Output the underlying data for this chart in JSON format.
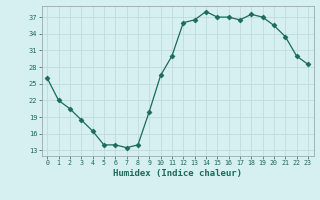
{
  "x": [
    0,
    1,
    2,
    3,
    4,
    5,
    6,
    7,
    8,
    9,
    10,
    11,
    12,
    13,
    14,
    15,
    16,
    17,
    18,
    19,
    20,
    21,
    22,
    23
  ],
  "y": [
    26,
    22,
    20.5,
    18.5,
    16.5,
    14,
    14,
    13.5,
    14,
    20,
    26.5,
    30,
    36,
    36.5,
    38,
    37,
    37,
    36.5,
    37.5,
    37,
    35.5,
    33.5,
    30,
    28.5
  ],
  "line_color": "#1a6b5a",
  "marker": "D",
  "marker_size": 2.5,
  "bg_color": "#d6eff0",
  "grid_color": "#c4dada",
  "xlabel": "Humidex (Indice chaleur)",
  "yticks": [
    13,
    16,
    19,
    22,
    25,
    28,
    31,
    34,
    37
  ],
  "xticks": [
    0,
    1,
    2,
    3,
    4,
    5,
    6,
    7,
    8,
    9,
    10,
    11,
    12,
    13,
    14,
    15,
    16,
    17,
    18,
    19,
    20,
    21,
    22,
    23
  ],
  "ylim": [
    12.0,
    39.0
  ],
  "xlim": [
    -0.5,
    23.5
  ]
}
